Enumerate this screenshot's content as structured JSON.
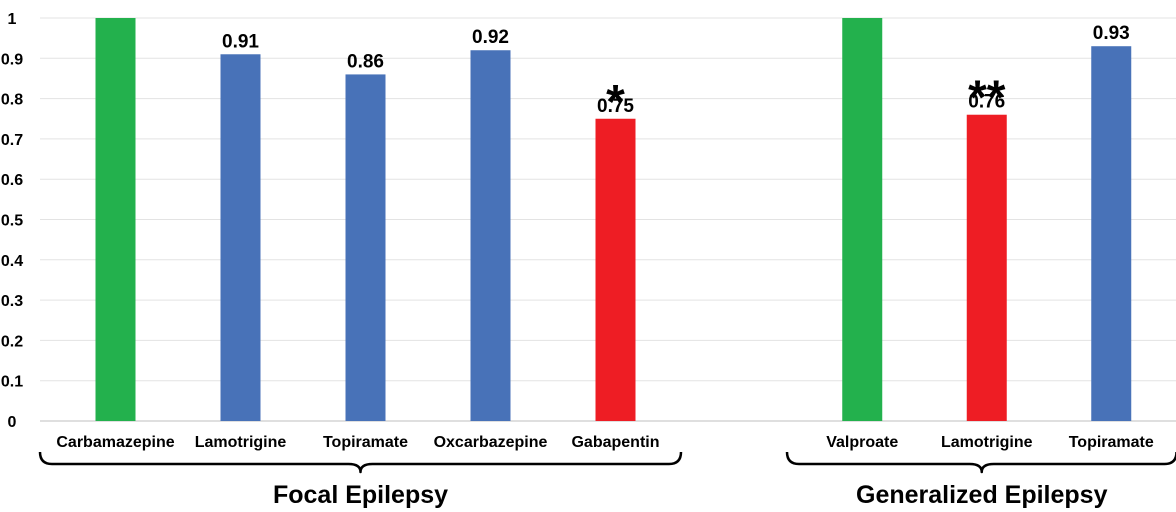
{
  "chart_data": {
    "type": "bar",
    "title": "",
    "xlabel": "",
    "ylabel": "",
    "ylim": [
      0,
      1
    ],
    "yticks": [
      0,
      0.1,
      0.2,
      0.3,
      0.4,
      0.5,
      0.6,
      0.7,
      0.8,
      0.9,
      1
    ],
    "ytick_labels": [
      "0",
      "0.1",
      "0.2",
      "0.3",
      "0.4",
      "0.5",
      "0.6",
      "0.7",
      "0.8",
      "0.9",
      "1"
    ],
    "grid": true,
    "legend": "none",
    "colors": {
      "reference": "#23b14d",
      "comparison": "#4872b8",
      "significant": "#ee1d24"
    },
    "groups": [
      {
        "label": "Focal Epilepsy",
        "bars": [
          {
            "category": "Carbamazepine",
            "value": 1.0,
            "role": "reference",
            "value_label": "",
            "significance": ""
          },
          {
            "category": "Lamotrigine",
            "value": 0.91,
            "role": "comparison",
            "value_label": "0.91",
            "significance": ""
          },
          {
            "category": "Topiramate",
            "value": 0.86,
            "role": "comparison",
            "value_label": "0.86",
            "significance": ""
          },
          {
            "category": "Oxcarbazepine",
            "value": 0.92,
            "role": "comparison",
            "value_label": "0.92",
            "significance": ""
          },
          {
            "category": "Gabapentin",
            "value": 0.75,
            "role": "significant",
            "value_label": "0.75",
            "significance": "*"
          }
        ]
      },
      {
        "label": "Generalized Epilepsy",
        "bars": [
          {
            "category": "Valproate",
            "value": 1.0,
            "role": "reference",
            "value_label": "",
            "significance": ""
          },
          {
            "category": "Lamotrigine",
            "value": 0.76,
            "role": "significant",
            "value_label": "0.76",
            "significance": "**"
          },
          {
            "category": "Topiramate",
            "value": 0.93,
            "role": "comparison",
            "value_label": "0.93",
            "significance": ""
          }
        ]
      }
    ]
  }
}
